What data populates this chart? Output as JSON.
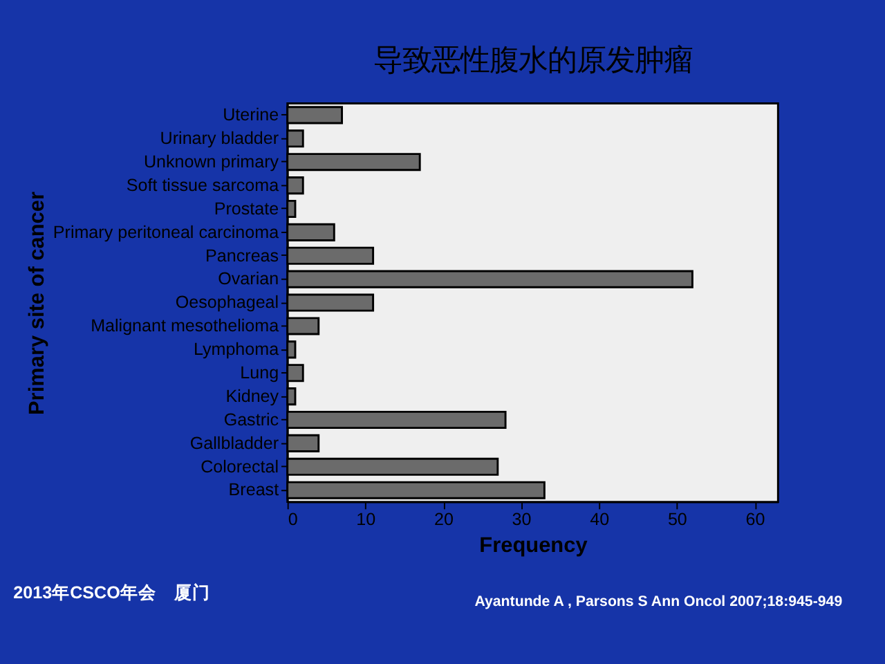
{
  "chart_data": {
    "type": "bar",
    "orientation": "horizontal",
    "title": "导致恶性腹水的原发肿瘤",
    "xlabel": "Frequency",
    "ylabel": "Primary site of cancer",
    "categories": [
      "Uterine",
      "Urinary bladder",
      "Unknown primary",
      "Soft tissue sarcoma",
      "Prostate",
      "Primary peritoneal carcinoma",
      "Pancreas",
      "Ovarian",
      "Oesophageal",
      "Malignant mesothelioma",
      "Lymphoma",
      "Lung",
      "Kidney",
      "Gastric",
      "Gallbladder",
      "Colorectal",
      "Breast"
    ],
    "values": [
      7,
      2,
      17,
      2,
      1,
      6,
      11,
      52,
      11,
      4,
      1,
      2,
      1,
      28,
      4,
      27,
      33
    ],
    "color": "#6b6b6b",
    "xlim": [
      0,
      63
    ],
    "xticks": [
      0,
      10,
      20,
      30,
      40,
      50,
      60
    ],
    "grid": false,
    "annotations": [
      "2013年CSCO年会　厦门",
      "Ayantunde A , Parsons S Ann Oncol 2007;18:945-949"
    ]
  }
}
